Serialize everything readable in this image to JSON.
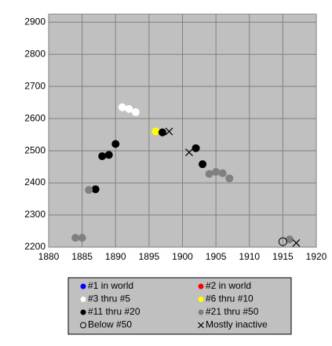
{
  "chart_data": {
    "type": "scatter",
    "xlim": [
      1880,
      1920
    ],
    "xticks": [
      1880,
      1885,
      1890,
      1895,
      1900,
      1905,
      1910,
      1915,
      1920
    ],
    "ylim": [
      2200,
      2925
    ],
    "yticks": [
      2200,
      2300,
      2400,
      2500,
      2600,
      2700,
      2800,
      2900
    ],
    "grid": true,
    "series": [
      {
        "name": "#1 in world",
        "color": "#0000ff",
        "marker": "circle",
        "x": [],
        "values": []
      },
      {
        "name": "#2 in world",
        "color": "#ff0000",
        "marker": "circle",
        "x": [],
        "values": []
      },
      {
        "name": "#3 thru #5",
        "color": "#ffffff",
        "marker": "circle",
        "x": [
          1891,
          1892,
          1893
        ],
        "values": [
          2635,
          2630,
          2620
        ]
      },
      {
        "name": "#6 thru #10",
        "color": "#ffff00",
        "marker": "circle",
        "x": [
          1896
        ],
        "values": [
          2560
        ]
      },
      {
        "name": "#11 thru #20",
        "color": "#000000",
        "marker": "circle",
        "x": [
          1887,
          1888,
          1889,
          1890,
          1897,
          1902,
          1903
        ],
        "values": [
          2380,
          2483,
          2487,
          2521,
          2557,
          2508,
          2458
        ]
      },
      {
        "name": "#21 thru #50",
        "color": "#808080",
        "marker": "circle",
        "x": [
          1884,
          1885,
          1886,
          1904,
          1905,
          1906,
          1907,
          1916
        ],
        "values": [
          2229,
          2229,
          2378,
          2428,
          2434,
          2430,
          2414,
          2224
        ]
      },
      {
        "name": "Below #50",
        "color": "#000000",
        "marker": "open-circle",
        "x": [
          1915
        ],
        "values": [
          2217
        ]
      },
      {
        "name": "Mostly inactive",
        "color": "#000000",
        "marker": "x",
        "x": [
          1898,
          1901,
          1917
        ],
        "values": [
          2560,
          2495,
          2213
        ]
      }
    ]
  }
}
